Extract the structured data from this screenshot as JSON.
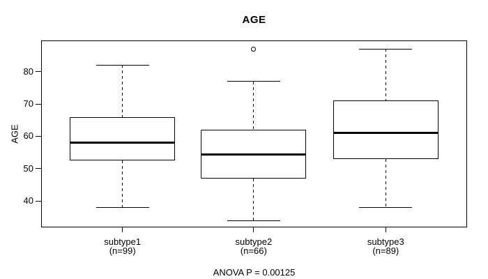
{
  "chart_data": {
    "type": "boxplot",
    "title": "AGE",
    "ylabel": "AGE",
    "ylim": [
      31.9,
      89.6
    ],
    "yticks": [
      40,
      50,
      60,
      70,
      80
    ],
    "grid": false,
    "annotation": "ANOVA P = 0.00125",
    "groups": [
      {
        "label": "subtype1",
        "sublabel": "(n=99)",
        "whisker_low": 38,
        "q1": 52.5,
        "median": 58,
        "q3": 66,
        "whisker_high": 82,
        "outliers": []
      },
      {
        "label": "subtype2",
        "sublabel": "(n=66)",
        "whisker_low": 34,
        "q1": 47,
        "median": 54.5,
        "q3": 62,
        "whisker_high": 77,
        "outliers": [
          87
        ]
      },
      {
        "label": "subtype3",
        "sublabel": "(n=89)",
        "whisker_low": 38,
        "q1": 53,
        "median": 61,
        "q3": 71,
        "whisker_high": 87,
        "outliers": []
      }
    ],
    "colors": {
      "line": "#000000",
      "background": "#ffffff"
    }
  }
}
